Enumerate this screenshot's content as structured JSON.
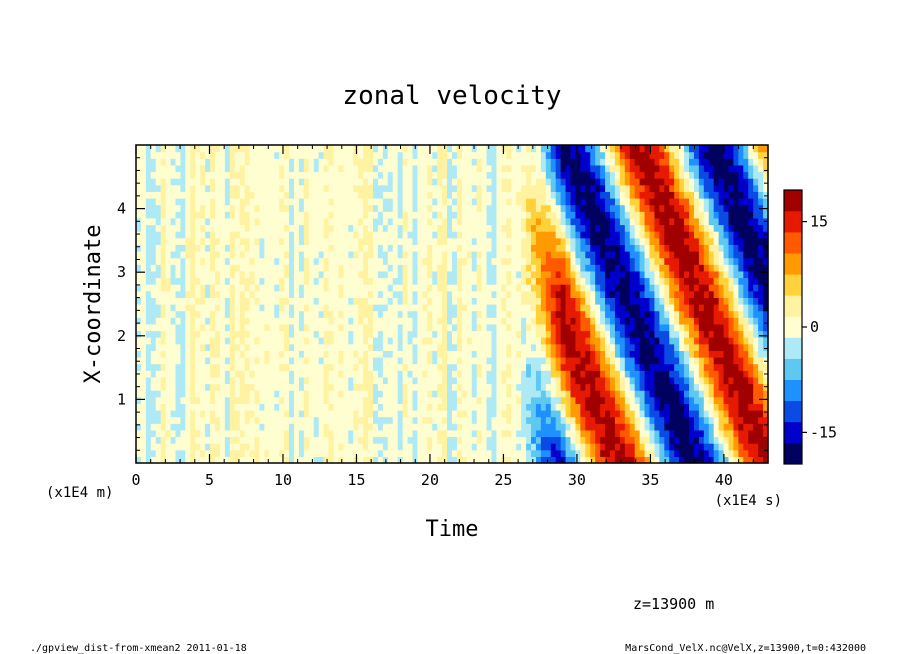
{
  "chart_data": {
    "type": "heatmap",
    "title": "zonal velocity",
    "xlabel": "Time",
    "ylabel": "X-coordinate",
    "xunit": "(x1E4 s)",
    "yunit": "(x1E4 m)",
    "xlim": [
      0,
      43
    ],
    "ylim": [
      0,
      5
    ],
    "x_ticks": [
      "0",
      "5",
      "10",
      "15",
      "20",
      "25",
      "30",
      "35",
      "40"
    ],
    "x_tick_values": [
      0,
      5,
      10,
      15,
      20,
      25,
      30,
      35,
      40
    ],
    "y_ticks": [
      "1",
      "2",
      "3",
      "4"
    ],
    "y_tick_values": [
      1,
      2,
      3,
      4
    ],
    "colorbar": {
      "ticks": [
        "15",
        "0",
        "-15"
      ],
      "tick_values": [
        15,
        0,
        -15
      ],
      "levels": [
        -18,
        -15,
        -12,
        -9,
        -6,
        -3,
        0,
        3,
        6,
        9,
        12,
        15,
        18
      ],
      "colors": [
        "#00005e",
        "#0000cd",
        "#0b4be5",
        "#1e90ff",
        "#5fc8f0",
        "#aeeaf5",
        "#fefed0",
        "#fff2a0",
        "#ffd23c",
        "#ff9a00",
        "#ff5a00",
        "#e61a00",
        "#a00000"
      ]
    },
    "grid": false,
    "legend": "colorbar-right",
    "field_description": {
      "quiet_until": 26,
      "wave_onset": 26.5,
      "band_period": 10,
      "band_slope_per_unit_x": -1.75,
      "amplitude_max": 18
    }
  },
  "annotations": {
    "level": "z=13900 m",
    "footer_left": "./gpview_dist-from-xmean2  2011-01-18",
    "footer_right": "MarsCond_VelX.nc@VelX,z=13900,t=0:432000"
  }
}
